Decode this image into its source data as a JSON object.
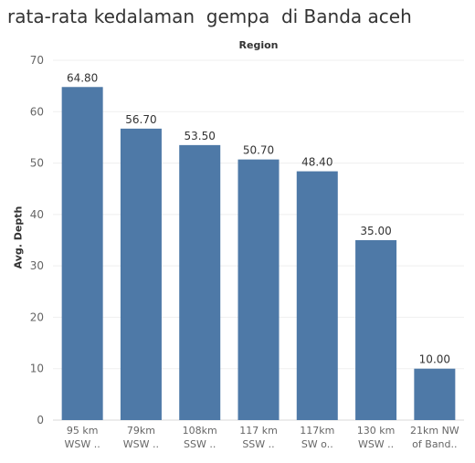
{
  "title": "rata-rata kedalaman  gempa  di Banda aceh",
  "header": "Region",
  "chart_data": {
    "type": "bar",
    "title": "rata-rata kedalaman  gempa  di Banda aceh",
    "xlabel": "Region",
    "ylabel": "Avg. Depth",
    "ylim": [
      0,
      70
    ],
    "yticks": [
      0,
      10,
      20,
      30,
      40,
      50,
      60,
      70
    ],
    "grid": true,
    "categories": [
      [
        "95 km",
        "WSW .."
      ],
      [
        "79km",
        "WSW .."
      ],
      [
        "108km",
        "SSW .."
      ],
      [
        "117 km",
        "SSW .."
      ],
      [
        "117km",
        "SW o.."
      ],
      [
        "130 km",
        "WSW .."
      ],
      [
        "21km NW",
        "of Band.."
      ]
    ],
    "values": [
      64.8,
      56.7,
      53.5,
      50.7,
      48.4,
      35.0,
      10.0
    ],
    "data_labels": [
      "64.80",
      "56.70",
      "53.50",
      "50.70",
      "48.40",
      "35.00",
      "10.00"
    ],
    "bar_color": "#4e79a7"
  }
}
